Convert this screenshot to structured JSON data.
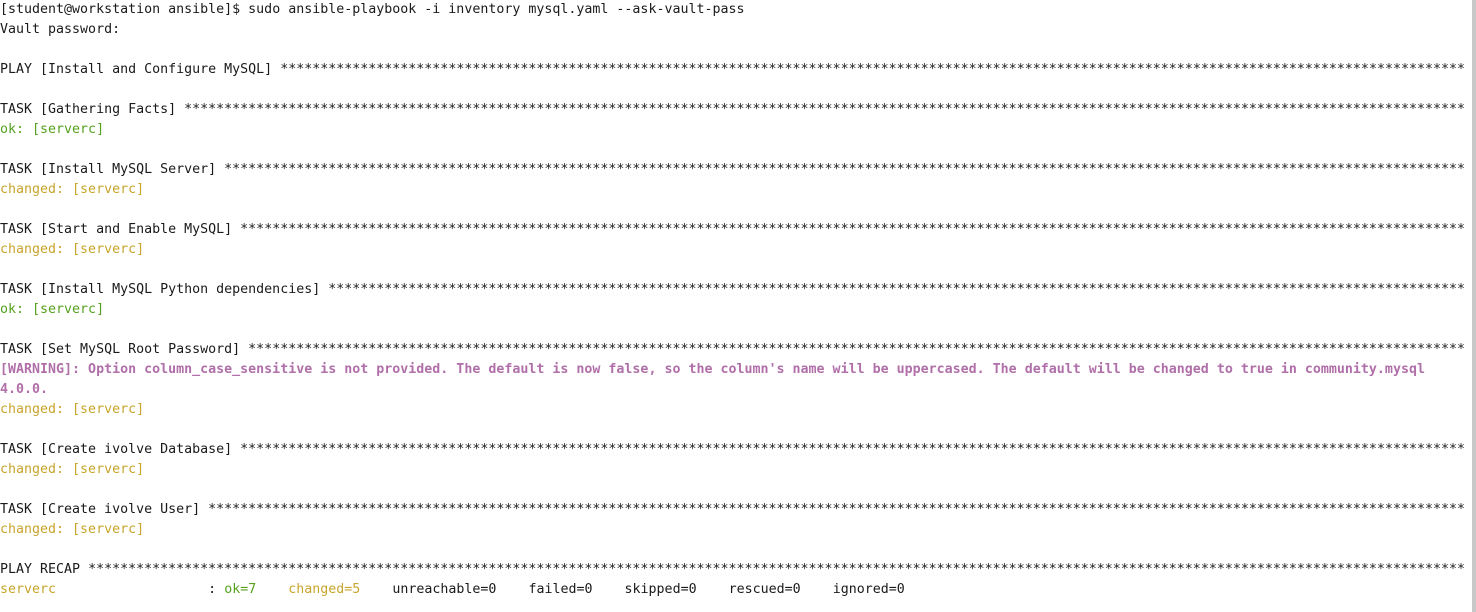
{
  "terminal": {
    "prompt": "[student@workstation ansible]$ ",
    "command": "sudo ansible-playbook -i inventory mysql.yaml --ask-vault-pass",
    "vault_prompt": "Vault password:",
    "stars": "**************************************************************************************************************************************************************************************************************************************************",
    "play_header": "PLAY [Install and Configure MySQL] ",
    "tasks": [
      {
        "header": "TASK [Gathering Facts] ",
        "status": "ok: [serverc]",
        "status_type": "ok"
      },
      {
        "header": "TASK [Install MySQL Server] ",
        "status": "changed: [serverc]",
        "status_type": "changed"
      },
      {
        "header": "TASK [Start and Enable MySQL] ",
        "status": "changed: [serverc]",
        "status_type": "changed"
      },
      {
        "header": "TASK [Install MySQL Python dependencies] ",
        "status": "ok: [serverc]",
        "status_type": "ok"
      },
      {
        "header": "TASK [Set MySQL Root Password] ",
        "warning_line1": "[WARNING]: Option column_case_sensitive is not provided. The default is now false, so the column's name will be uppercased. The default will be changed to true in community.mysql",
        "warning_line2": "4.0.0.",
        "status": "changed: [serverc]",
        "status_type": "changed"
      },
      {
        "header": "TASK [Create ivolve Database] ",
        "status": "changed: [serverc]",
        "status_type": "changed"
      },
      {
        "header": "TASK [Create ivolve User] ",
        "status": "changed: [serverc]",
        "status_type": "changed"
      }
    ],
    "recap_header": "PLAY RECAP ",
    "recap": {
      "host": "serverc",
      "separator": " : ",
      "ok": "ok=7",
      "changed": "changed=5",
      "unreachable": "unreachable=0",
      "failed": "failed=0",
      "skipped": "skipped=0",
      "rescued": "rescued=0",
      "ignored": "ignored=0"
    },
    "colors": {
      "text": "#1a1a1a",
      "ok": "#57a11f",
      "changed": "#c8a52c",
      "warning": "#b06fa8",
      "background": "#ffffff"
    }
  }
}
